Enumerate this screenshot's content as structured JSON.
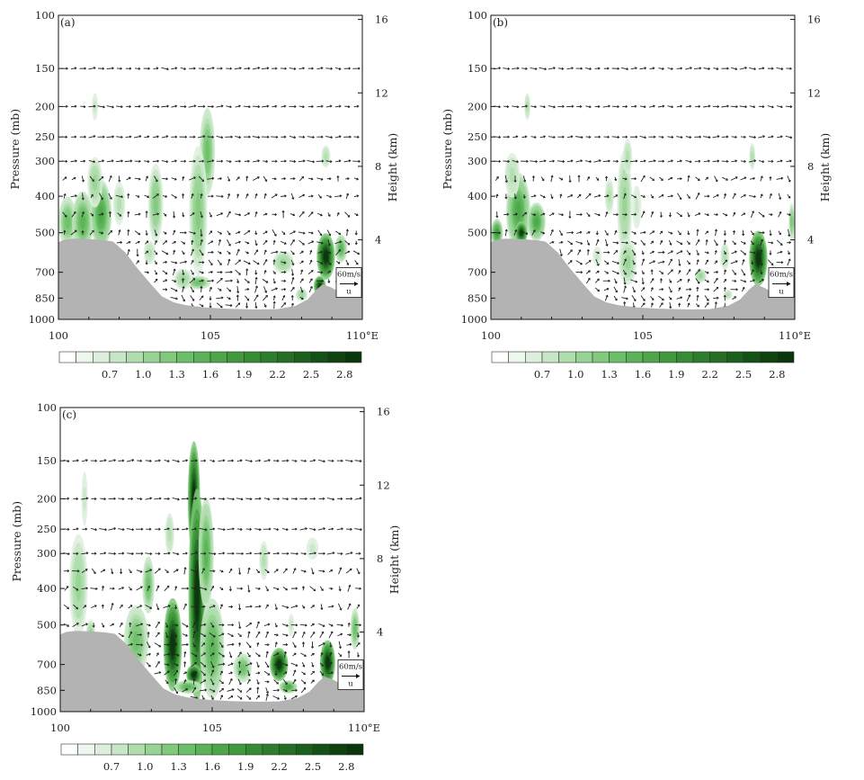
{
  "chart_data": [
    {
      "type": "heatmap",
      "panel_label": "(a)",
      "xlabel": "",
      "ylabel": "Pressure (mb)",
      "y2label": "Height (km)",
      "xlim": [
        100,
        110
      ],
      "x_ticks": [
        "100",
        "105",
        "110°E"
      ],
      "pressure_ticks": [
        "100",
        "150",
        "200",
        "250",
        "300",
        "400",
        "500",
        "700",
        "850",
        "1000"
      ],
      "height_ticks": [
        "4",
        "8",
        "12",
        "16"
      ],
      "ylim_mb": [
        1000,
        100
      ],
      "wind_reference": {
        "label": "60m/s",
        "component": "u"
      },
      "colorbar": {
        "levels": [
          0.7,
          1.0,
          1.3,
          1.6,
          1.9,
          2.2,
          2.5,
          2.8
        ],
        "tick_labels": [
          "0.7",
          "1.0",
          "1.3",
          "1.6",
          "1.9",
          "2.2",
          "2.5",
          "2.8"
        ]
      },
      "blobs": [
        {
          "lon": 100.3,
          "p": 470,
          "lw": 0.3,
          "pw": 80,
          "v": 1.0
        },
        {
          "lon": 100.8,
          "p": 470,
          "lw": 0.35,
          "pw": 100,
          "v": 1.2
        },
        {
          "lon": 101.4,
          "p": 450,
          "lw": 0.35,
          "pw": 110,
          "v": 1.3
        },
        {
          "lon": 101.2,
          "p": 360,
          "lw": 0.25,
          "pw": 70,
          "v": 0.7
        },
        {
          "lon": 102.0,
          "p": 420,
          "lw": 0.2,
          "pw": 60,
          "v": 0.6
        },
        {
          "lon": 103.2,
          "p": 420,
          "lw": 0.25,
          "pw": 120,
          "v": 0.9
        },
        {
          "lon": 103.0,
          "p": 600,
          "lw": 0.2,
          "pw": 60,
          "v": 0.6
        },
        {
          "lon": 104.9,
          "p": 280,
          "lw": 0.25,
          "pw": 90,
          "v": 1.0
        },
        {
          "lon": 104.6,
          "p": 440,
          "lw": 0.3,
          "pw": 200,
          "v": 0.9
        },
        {
          "lon": 104.6,
          "p": 760,
          "lw": 0.4,
          "pw": 40,
          "v": 1.1
        },
        {
          "lon": 104.1,
          "p": 740,
          "lw": 0.3,
          "pw": 60,
          "v": 0.8
        },
        {
          "lon": 107.4,
          "p": 650,
          "lw": 0.35,
          "pw": 60,
          "v": 0.8
        },
        {
          "lon": 108.0,
          "p": 830,
          "lw": 0.2,
          "pw": 40,
          "v": 0.7
        },
        {
          "lon": 108.8,
          "p": 620,
          "lw": 0.3,
          "pw": 120,
          "v": 2.6
        },
        {
          "lon": 108.6,
          "p": 780,
          "lw": 0.2,
          "pw": 60,
          "v": 2.4
        },
        {
          "lon": 109.3,
          "p": 580,
          "lw": 0.2,
          "pw": 70,
          "v": 1.2
        },
        {
          "lon": 108.8,
          "p": 290,
          "lw": 0.15,
          "pw": 25,
          "v": 0.6
        },
        {
          "lon": 101.2,
          "p": 200,
          "lw": 0.1,
          "pw": 20,
          "v": 0.5
        }
      ]
    },
    {
      "type": "heatmap",
      "panel_label": "(b)",
      "xlabel": "",
      "ylabel": "Pressure (mb)",
      "y2label": "Height (km)",
      "xlim": [
        100,
        110
      ],
      "x_ticks": [
        "100",
        "105",
        "110°E"
      ],
      "pressure_ticks": [
        "100",
        "150",
        "200",
        "250",
        "300",
        "400",
        "500",
        "700",
        "850",
        "1000"
      ],
      "height_ticks": [
        "4",
        "8",
        "12",
        "16"
      ],
      "ylim_mb": [
        1000,
        100
      ],
      "wind_reference": {
        "label": "60m/s",
        "component": "u"
      },
      "colorbar": {
        "levels": [
          0.7,
          1.0,
          1.3,
          1.6,
          1.9,
          2.2,
          2.5,
          2.8
        ],
        "tick_labels": [
          "0.7",
          "1.0",
          "1.3",
          "1.6",
          "1.9",
          "2.2",
          "2.5",
          "2.8"
        ]
      },
      "blobs": [
        {
          "lon": 100.2,
          "p": 500,
          "lw": 0.2,
          "pw": 50,
          "v": 1.5
        },
        {
          "lon": 100.9,
          "p": 440,
          "lw": 0.4,
          "pw": 120,
          "v": 1.3
        },
        {
          "lon": 101.0,
          "p": 500,
          "lw": 0.2,
          "pw": 40,
          "v": 2.4
        },
        {
          "lon": 101.5,
          "p": 470,
          "lw": 0.3,
          "pw": 60,
          "v": 1.4
        },
        {
          "lon": 100.7,
          "p": 340,
          "lw": 0.25,
          "pw": 60,
          "v": 0.6
        },
        {
          "lon": 101.2,
          "p": 200,
          "lw": 0.1,
          "pw": 20,
          "v": 0.6
        },
        {
          "lon": 103.9,
          "p": 400,
          "lw": 0.15,
          "pw": 50,
          "v": 0.6
        },
        {
          "lon": 104.4,
          "p": 420,
          "lw": 0.25,
          "pw": 160,
          "v": 0.8
        },
        {
          "lon": 104.5,
          "p": 290,
          "lw": 0.15,
          "pw": 40,
          "v": 0.6
        },
        {
          "lon": 104.8,
          "p": 430,
          "lw": 0.15,
          "pw": 60,
          "v": 0.5
        },
        {
          "lon": 104.5,
          "p": 650,
          "lw": 0.3,
          "pw": 120,
          "v": 0.8
        },
        {
          "lon": 103.5,
          "p": 620,
          "lw": 0.15,
          "pw": 50,
          "v": 0.5
        },
        {
          "lon": 106.9,
          "p": 720,
          "lw": 0.2,
          "pw": 40,
          "v": 0.7
        },
        {
          "lon": 107.7,
          "p": 620,
          "lw": 0.15,
          "pw": 70,
          "v": 0.6
        },
        {
          "lon": 107.8,
          "p": 830,
          "lw": 0.15,
          "pw": 30,
          "v": 0.6
        },
        {
          "lon": 108.8,
          "p": 630,
          "lw": 0.3,
          "pw": 140,
          "v": 2.7
        },
        {
          "lon": 108.6,
          "p": 290,
          "lw": 0.1,
          "pw": 30,
          "v": 0.6
        },
        {
          "lon": 109.9,
          "p": 470,
          "lw": 0.1,
          "pw": 60,
          "v": 0.9
        },
        {
          "lon": 109.3,
          "p": 720,
          "lw": 0.15,
          "pw": 60,
          "v": 0.9
        }
      ]
    },
    {
      "type": "heatmap",
      "panel_label": "(c)",
      "xlabel": "",
      "ylabel": "Pressure (mb)",
      "y2label": "Height (km)",
      "xlim": [
        100,
        110
      ],
      "x_ticks": [
        "100",
        "105",
        "110°E"
      ],
      "pressure_ticks": [
        "100",
        "150",
        "200",
        "250",
        "300",
        "400",
        "500",
        "700",
        "850",
        "1000"
      ],
      "height_ticks": [
        "4",
        "8",
        "12",
        "16"
      ],
      "ylim_mb": [
        1000,
        100
      ],
      "wind_reference": {
        "label": "60m/s",
        "component": "u"
      },
      "colorbar": {
        "levels": [
          0.7,
          1.0,
          1.3,
          1.6,
          1.9,
          2.2,
          2.5,
          2.8
        ],
        "tick_labels": [
          "0.7",
          "1.0",
          "1.3",
          "1.6",
          "1.9",
          "2.2",
          "2.5",
          "2.8"
        ]
      },
      "blobs": [
        {
          "lon": 100.8,
          "p": 200,
          "lw": 0.1,
          "pw": 40,
          "v": 0.5
        },
        {
          "lon": 100.6,
          "p": 390,
          "lw": 0.3,
          "pw": 140,
          "v": 0.8
        },
        {
          "lon": 101.0,
          "p": 540,
          "lw": 0.15,
          "pw": 60,
          "v": 0.8
        },
        {
          "lon": 102.5,
          "p": 580,
          "lw": 0.4,
          "pw": 150,
          "v": 1.0
        },
        {
          "lon": 102.9,
          "p": 390,
          "lw": 0.2,
          "pw": 80,
          "v": 1.1
        },
        {
          "lon": 103.6,
          "p": 260,
          "lw": 0.15,
          "pw": 40,
          "v": 0.6
        },
        {
          "lon": 103.7,
          "p": 600,
          "lw": 0.3,
          "pw": 200,
          "v": 2.6
        },
        {
          "lon": 104.4,
          "p": 200,
          "lw": 0.2,
          "pw": 80,
          "v": 2.8
        },
        {
          "lon": 104.5,
          "p": 420,
          "lw": 0.28,
          "pw": 280,
          "v": 3.0
        },
        {
          "lon": 104.4,
          "p": 760,
          "lw": 0.25,
          "pw": 60,
          "v": 2.6
        },
        {
          "lon": 104.8,
          "p": 300,
          "lw": 0.25,
          "pw": 120,
          "v": 1.2
        },
        {
          "lon": 105.0,
          "p": 620,
          "lw": 0.4,
          "pw": 220,
          "v": 1.2
        },
        {
          "lon": 104.2,
          "p": 830,
          "lw": 0.45,
          "pw": 40,
          "v": 1.2
        },
        {
          "lon": 106.7,
          "p": 320,
          "lw": 0.15,
          "pw": 50,
          "v": 0.6
        },
        {
          "lon": 106.0,
          "p": 720,
          "lw": 0.3,
          "pw": 80,
          "v": 1.0
        },
        {
          "lon": 107.2,
          "p": 700,
          "lw": 0.3,
          "pw": 90,
          "v": 2.6
        },
        {
          "lon": 107.5,
          "p": 830,
          "lw": 0.3,
          "pw": 40,
          "v": 1.3
        },
        {
          "lon": 107.6,
          "p": 500,
          "lw": 0.1,
          "pw": 40,
          "v": 0.5
        },
        {
          "lon": 108.3,
          "p": 290,
          "lw": 0.2,
          "pw": 25,
          "v": 0.5
        },
        {
          "lon": 108.8,
          "p": 690,
          "lw": 0.25,
          "pw": 120,
          "v": 2.5
        },
        {
          "lon": 109.7,
          "p": 520,
          "lw": 0.15,
          "pw": 80,
          "v": 1.0
        }
      ]
    }
  ],
  "colors": {
    "terrain": "#b3b3b3",
    "palette": [
      "#ffffff",
      "#eef7ee",
      "#ddefdc",
      "#c7e6c6",
      "#afddad",
      "#97d394",
      "#80c97d",
      "#6cbf69",
      "#5bb357",
      "#4da649",
      "#41993e",
      "#368c34",
      "#2d7e2c",
      "#246f24",
      "#1c601d",
      "#145116",
      "#0e4310",
      "#0a360c"
    ]
  }
}
